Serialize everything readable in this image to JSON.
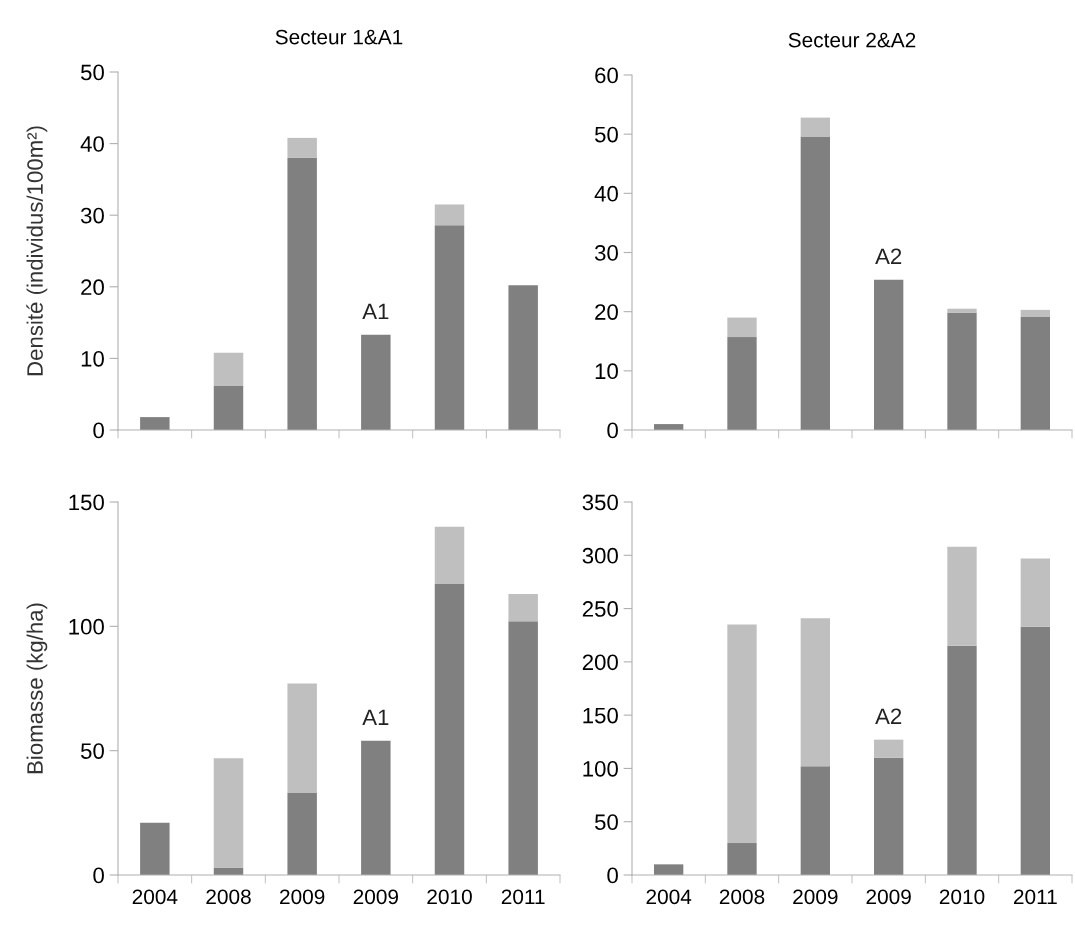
{
  "chart_data": [
    {
      "type": "bar",
      "title": "Secteur 1&A1",
      "ylabel": "Densité (individus/100m²)",
      "stacked": true,
      "tick_labels": "y",
      "categories": [
        "2004",
        "2008",
        "2009",
        "2009",
        "2010",
        "2011"
      ],
      "series": [
        {
          "color": "#808080",
          "values": [
            1.8,
            6.2,
            38,
            13.3,
            28.6,
            20.2
          ]
        },
        {
          "color": "#bfbfbf",
          "values": [
            0,
            4.6,
            2.8,
            0,
            2.9,
            0
          ]
        }
      ],
      "ylim": [
        0,
        50
      ],
      "yticks": [
        0,
        10,
        20,
        30,
        40,
        50
      ],
      "grid": false,
      "annotations": [
        "A1"
      ]
    },
    {
      "type": "bar",
      "title": "Secteur 2&A2",
      "stacked": true,
      "tick_labels": "y",
      "categories": [
        "2004",
        "2008",
        "2009",
        "2009",
        "2010",
        "2011"
      ],
      "series": [
        {
          "color": "#808080",
          "values": [
            1,
            15.7,
            49.6,
            25.4,
            19.8,
            19.1
          ]
        },
        {
          "color": "#bfbfbf",
          "values": [
            0,
            3.3,
            3.2,
            0,
            0.7,
            1.2
          ]
        }
      ],
      "ylim": [
        0,
        60
      ],
      "yticks": [
        0,
        10,
        20,
        30,
        40,
        50,
        60
      ],
      "grid": false,
      "annotations": [
        "A2"
      ]
    },
    {
      "type": "bar",
      "ylabel": "Biomasse (kg/ha)",
      "stacked": true,
      "categories": [
        "2004",
        "2008",
        "2009",
        "2009",
        "2010",
        "2011"
      ],
      "series": [
        {
          "color": "#808080",
          "values": [
            21,
            3,
            33,
            54,
            117,
            102
          ]
        },
        {
          "color": "#bfbfbf",
          "values": [
            0,
            44,
            44,
            0,
            23,
            11
          ]
        }
      ],
      "ylim": [
        0,
        150
      ],
      "yticks": [
        0,
        50,
        100,
        150
      ],
      "grid": false,
      "annotations": [
        "A1"
      ]
    },
    {
      "type": "bar",
      "stacked": true,
      "categories": [
        "2004",
        "2008",
        "2009",
        "2009",
        "2010",
        "2011"
      ],
      "series": [
        {
          "color": "#808080",
          "values": [
            10,
            30,
            102,
            110,
            215,
            233
          ]
        },
        {
          "color": "#bfbfbf",
          "values": [
            0,
            205,
            139,
            17,
            93,
            64
          ]
        }
      ],
      "ylim": [
        0,
        350
      ],
      "yticks": [
        0,
        50,
        100,
        150,
        200,
        250,
        300,
        350
      ],
      "grid": false,
      "annotations": [
        "A2"
      ]
    }
  ]
}
